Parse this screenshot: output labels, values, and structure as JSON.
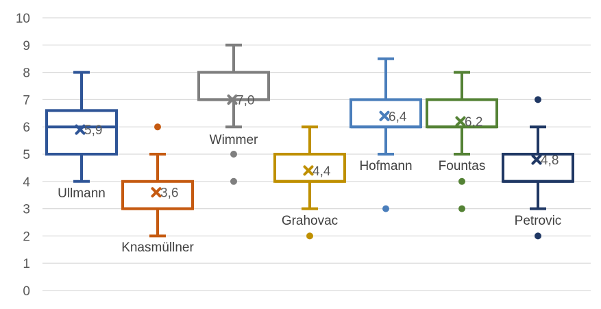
{
  "chart_data": {
    "type": "box",
    "ylim": [
      0,
      10
    ],
    "yticks": [
      "0",
      "1",
      "2",
      "3",
      "4",
      "5",
      "6",
      "7",
      "8",
      "9",
      "10"
    ],
    "grid": true,
    "series": [
      {
        "name": "Ullmann",
        "color": "#2F5597",
        "min": 4,
        "q1": 5,
        "median": 6,
        "q3": 6.6,
        "max": 8,
        "mean": 5.9,
        "mean_label": "5,9",
        "outliers": []
      },
      {
        "name": "Knasmüllner",
        "color": "#C55A11",
        "min": 2,
        "q1": 3,
        "median": 3,
        "q3": 4,
        "max": 5,
        "mean": 3.6,
        "mean_label": "3,6",
        "outliers": [
          6
        ]
      },
      {
        "name": "Wimmer",
        "color": "#7F7F7F",
        "min": 6,
        "q1": 7,
        "median": 7,
        "q3": 8,
        "max": 9,
        "mean": 7.0,
        "mean_label": "7,0",
        "outliers": [
          5,
          4
        ]
      },
      {
        "name": "Grahovac",
        "color": "#BF9000",
        "min": 3,
        "q1": 4,
        "median": 4,
        "q3": 5,
        "max": 6,
        "mean": 4.4,
        "mean_label": "4,4",
        "outliers": [
          2
        ]
      },
      {
        "name": "Hofmann",
        "color": "#4A7EBB",
        "min": 5,
        "q1": 6,
        "median": 6,
        "q3": 7,
        "max": 8.5,
        "mean": 6.4,
        "mean_label": "6,4",
        "outliers": [
          3
        ]
      },
      {
        "name": "Fountas",
        "color": "#548235",
        "min": 5,
        "q1": 6,
        "median": 6,
        "q3": 7,
        "max": 8,
        "mean": 6.2,
        "mean_label": "6,2",
        "outliers": [
          4,
          3
        ]
      },
      {
        "name": "Petrovic",
        "color": "#203864",
        "min": 3,
        "q1": 4,
        "median": 4,
        "q3": 5,
        "max": 6,
        "mean": 4.8,
        "mean_label": "4,8",
        "outliers": [
          7,
          2
        ]
      }
    ]
  }
}
